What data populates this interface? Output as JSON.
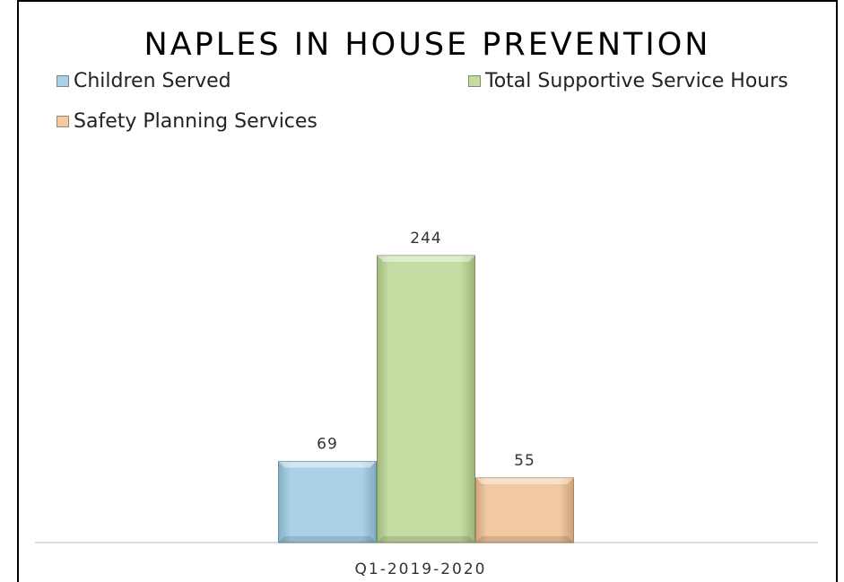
{
  "chart_data": {
    "type": "bar",
    "title": "NAPLES IN HOUSE PREVENTION",
    "categories": [
      "Q1-2019-2020"
    ],
    "series": [
      {
        "name": "Children Served",
        "values": [
          69
        ],
        "color": "#a9d2e6"
      },
      {
        "name": "Total Supportive Service Hours",
        "values": [
          244
        ],
        "color": "#c4dca2"
      },
      {
        "name": "Safety Planning Services",
        "values": [
          55
        ],
        "color": "#f3c9a2"
      }
    ],
    "data_labels": [
      "69",
      "244",
      "55"
    ],
    "xlabel": "",
    "ylabel": "",
    "ylim": [
      0,
      244
    ],
    "grid": false,
    "legend_position": "top"
  }
}
